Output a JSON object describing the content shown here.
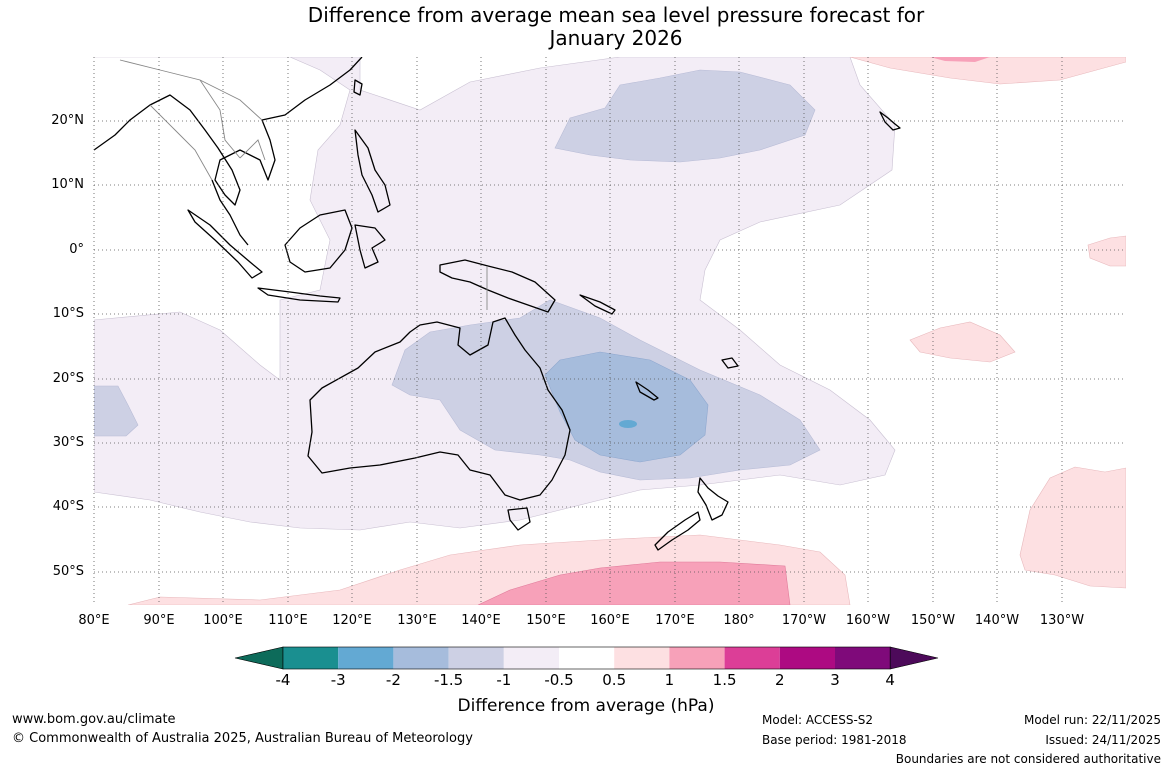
{
  "title_line1": "Difference from average mean sea level pressure forecast for",
  "title_line2": "January 2026",
  "lat_labels": [
    "20°N",
    "10°N",
    "0°",
    "10°S",
    "20°S",
    "30°S",
    "40°S",
    "50°S"
  ],
  "lon_labels": [
    "80°E",
    "90°E",
    "100°E",
    "110°E",
    "120°E",
    "130°E",
    "140°E",
    "150°E",
    "160°E",
    "170°E",
    "180°",
    "170°W",
    "160°W",
    "150°W",
    "140°W",
    "130°W"
  ],
  "colorbar": {
    "title": "Difference from average (hPa)",
    "tick_labels": [
      "-4",
      "-3",
      "-2",
      "-1.5",
      "-1",
      "-0.5",
      "0.5",
      "1",
      "1.5",
      "2",
      "3",
      "4"
    ],
    "colors": {
      "below_min": "#0d6b5a",
      "bins": [
        "#1a8f90",
        "#63a9d3",
        "#a6bcdc",
        "#cdd0e4",
        "#f3edf6",
        "#ffffff",
        "#fde0e2",
        "#f7a1b9",
        "#dc3e97",
        "#ad0a82",
        "#7f0a7a"
      ],
      "above_max": "#4d0a5a"
    }
  },
  "footer": {
    "website": "www.bom.gov.au/climate",
    "copyright": "© Commonwealth of Australia 2025, Australian Bureau of Meteorology",
    "model": "Model: ACCESS-S2",
    "base_period": "Base period: 1981-2018",
    "model_run": "Model run: 22/11/2025",
    "issued": "Issued: 24/11/2025",
    "disclaimer": "Boundaries are not considered authoritative"
  }
}
